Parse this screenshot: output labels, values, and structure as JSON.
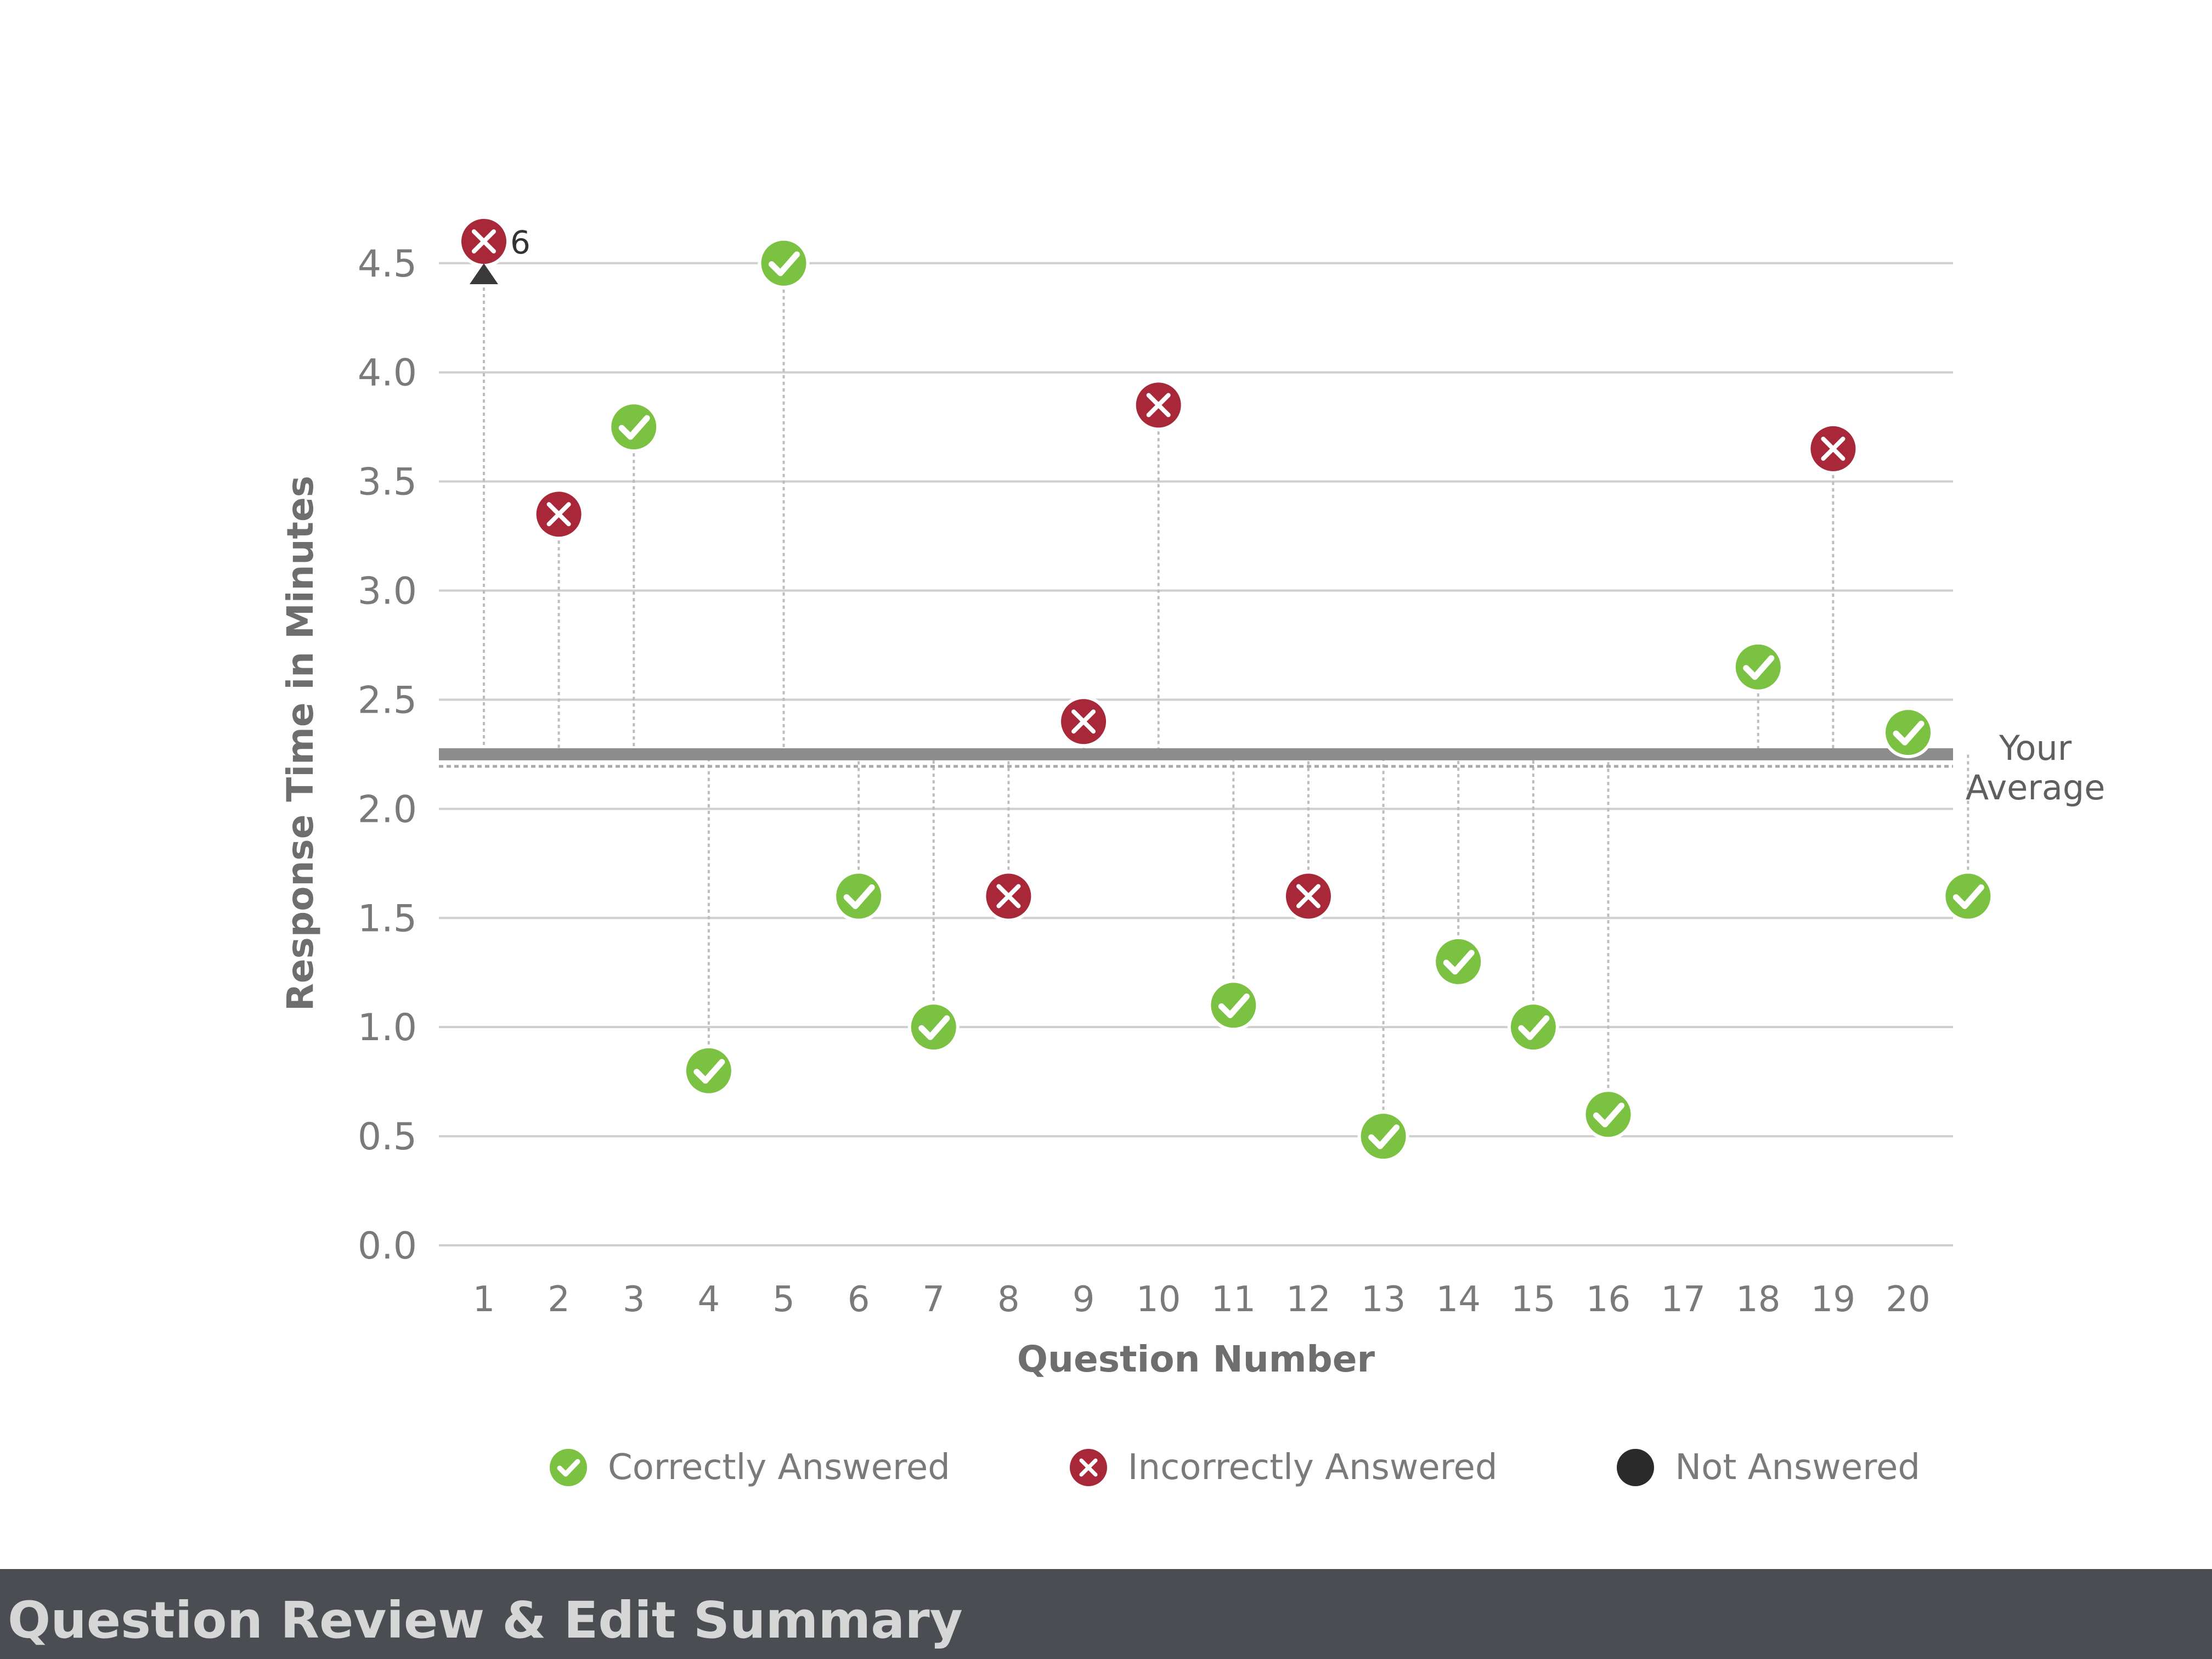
{
  "chart_data": {
    "type": "scatter",
    "xlabel": "Question Number",
    "ylabel": "Response Time in Minutes",
    "ylim": [
      0,
      4.6
    ],
    "x_ticks": [
      "1",
      "2",
      "3",
      "4",
      "5",
      "6",
      "7",
      "8",
      "9",
      "10",
      "11",
      "12",
      "13",
      "14",
      "15",
      "16",
      "17",
      "18",
      "19",
      "20"
    ],
    "y_ticks": [
      "0.0",
      "0.5",
      "1.0",
      "1.5",
      "2.0",
      "2.5",
      "3.0",
      "3.5",
      "4.0",
      "4.5"
    ],
    "average": {
      "value": 2.25,
      "label_line1": "Your",
      "label_line2": "Average"
    },
    "grid": true,
    "legend_position": "bottom",
    "series": [
      {
        "name": "Correctly Answered",
        "color": "#7cc242",
        "points": [
          [
            3,
            3.75
          ],
          [
            4,
            0.8
          ],
          [
            5,
            4.5
          ],
          [
            6,
            1.6
          ],
          [
            7,
            1.0
          ],
          [
            11,
            1.1
          ],
          [
            13,
            0.5
          ],
          [
            14,
            1.3
          ],
          [
            15,
            1.0
          ],
          [
            16,
            0.6
          ],
          [
            18,
            2.65
          ],
          [
            20,
            2.35
          ],
          [
            20.8,
            1.6
          ]
        ]
      },
      {
        "name": "Incorrectly Answered",
        "color": "#a8283a",
        "points": [
          [
            1,
            4.6
          ],
          [
            2,
            3.35
          ],
          [
            8,
            1.6
          ],
          [
            9,
            2.4
          ],
          [
            10,
            3.85
          ],
          [
            12,
            1.6
          ],
          [
            19,
            3.65
          ]
        ]
      },
      {
        "name": "Not Answered",
        "color": "#2b2b2b",
        "points": []
      }
    ],
    "annotation_text": "6"
  },
  "legend": {
    "correct": "Correctly Answered",
    "incorrect": "Incorrectly Answered",
    "not_answered": "Not Answered"
  },
  "section": {
    "title": "Question Review & Edit Summary"
  },
  "colors": {
    "correct": "#7cc242",
    "incorrect": "#a8283a",
    "not_answered": "#2b2b2b",
    "grid": "#cfcfcf",
    "average_line": "#8c8c8c",
    "text": "#7a7a7a",
    "footer_bg": "#4a4d52"
  }
}
